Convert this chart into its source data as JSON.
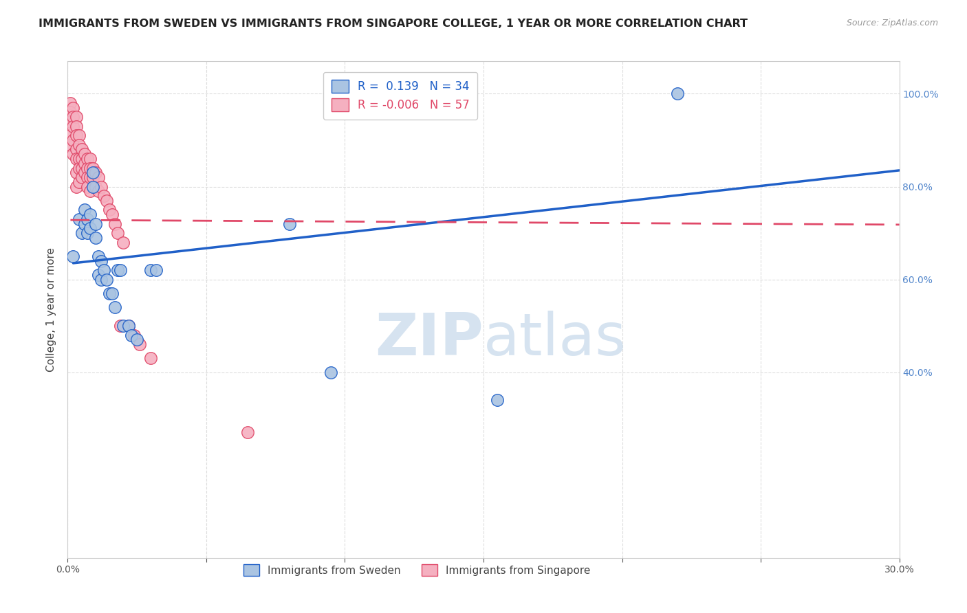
{
  "title": "IMMIGRANTS FROM SWEDEN VS IMMIGRANTS FROM SINGAPORE COLLEGE, 1 YEAR OR MORE CORRELATION CHART",
  "source": "Source: ZipAtlas.com",
  "ylabel": "College, 1 year or more",
  "xlim": [
    0.0,
    0.3
  ],
  "ylim": [
    0.0,
    1.07
  ],
  "yticks": [
    0.4,
    0.6,
    0.8,
    1.0
  ],
  "xticks": [
    0.0,
    0.05,
    0.1,
    0.15,
    0.2,
    0.25,
    0.3
  ],
  "xtick_labels": [
    "0.0%",
    "",
    "",
    "",
    "",
    "",
    "30.0%"
  ],
  "ytick_labels": [
    "40.0%",
    "60.0%",
    "80.0%",
    "100.0%"
  ],
  "legend_blue_R": "0.139",
  "legend_blue_N": "34",
  "legend_pink_R": "-0.006",
  "legend_pink_N": "57",
  "blue_color": "#aac4e2",
  "pink_color": "#f5b0c0",
  "trendline_blue_color": "#2060c8",
  "trendline_pink_color": "#e04868",
  "watermark_zip": "ZIP",
  "watermark_atlas": "atlas",
  "blue_scatter_x": [
    0.002,
    0.004,
    0.005,
    0.006,
    0.006,
    0.007,
    0.007,
    0.008,
    0.008,
    0.009,
    0.009,
    0.01,
    0.01,
    0.011,
    0.011,
    0.012,
    0.012,
    0.013,
    0.014,
    0.015,
    0.016,
    0.017,
    0.018,
    0.019,
    0.02,
    0.022,
    0.023,
    0.025,
    0.03,
    0.032,
    0.08,
    0.095,
    0.155,
    0.22
  ],
  "blue_scatter_y": [
    0.65,
    0.73,
    0.7,
    0.75,
    0.72,
    0.73,
    0.7,
    0.74,
    0.71,
    0.83,
    0.8,
    0.72,
    0.69,
    0.65,
    0.61,
    0.64,
    0.6,
    0.62,
    0.6,
    0.57,
    0.57,
    0.54,
    0.62,
    0.62,
    0.5,
    0.5,
    0.48,
    0.47,
    0.62,
    0.62,
    0.72,
    0.4,
    0.34,
    1.0
  ],
  "pink_scatter_x": [
    0.001,
    0.001,
    0.001,
    0.001,
    0.001,
    0.002,
    0.002,
    0.002,
    0.002,
    0.002,
    0.003,
    0.003,
    0.003,
    0.003,
    0.003,
    0.003,
    0.003,
    0.004,
    0.004,
    0.004,
    0.004,
    0.004,
    0.005,
    0.005,
    0.005,
    0.005,
    0.006,
    0.006,
    0.006,
    0.007,
    0.007,
    0.007,
    0.007,
    0.008,
    0.008,
    0.008,
    0.008,
    0.009,
    0.009,
    0.01,
    0.01,
    0.011,
    0.011,
    0.012,
    0.013,
    0.014,
    0.015,
    0.016,
    0.017,
    0.018,
    0.019,
    0.02,
    0.022,
    0.024,
    0.026,
    0.03,
    0.065
  ],
  "pink_scatter_y": [
    0.98,
    0.96,
    0.94,
    0.91,
    0.89,
    0.97,
    0.95,
    0.93,
    0.9,
    0.87,
    0.95,
    0.93,
    0.91,
    0.88,
    0.86,
    0.83,
    0.8,
    0.91,
    0.89,
    0.86,
    0.84,
    0.81,
    0.88,
    0.86,
    0.84,
    0.82,
    0.87,
    0.85,
    0.83,
    0.86,
    0.84,
    0.82,
    0.8,
    0.86,
    0.84,
    0.82,
    0.79,
    0.84,
    0.82,
    0.83,
    0.8,
    0.82,
    0.79,
    0.8,
    0.78,
    0.77,
    0.75,
    0.74,
    0.72,
    0.7,
    0.5,
    0.68,
    0.5,
    0.48,
    0.46,
    0.43,
    0.27
  ],
  "trendline_blue_x0": 0.002,
  "trendline_blue_x1": 0.3,
  "trendline_blue_y0": 0.635,
  "trendline_blue_y1": 0.835,
  "trendline_pink_x0": 0.001,
  "trendline_pink_x1": 0.3,
  "trendline_pink_y0": 0.728,
  "trendline_pink_y1": 0.718,
  "grid_color": "#dddddd",
  "background_color": "#ffffff",
  "title_fontsize": 11.5,
  "axis_label_fontsize": 11,
  "tick_fontsize": 10,
  "right_tick_color": "#5588cc",
  "scatter_size": 160
}
